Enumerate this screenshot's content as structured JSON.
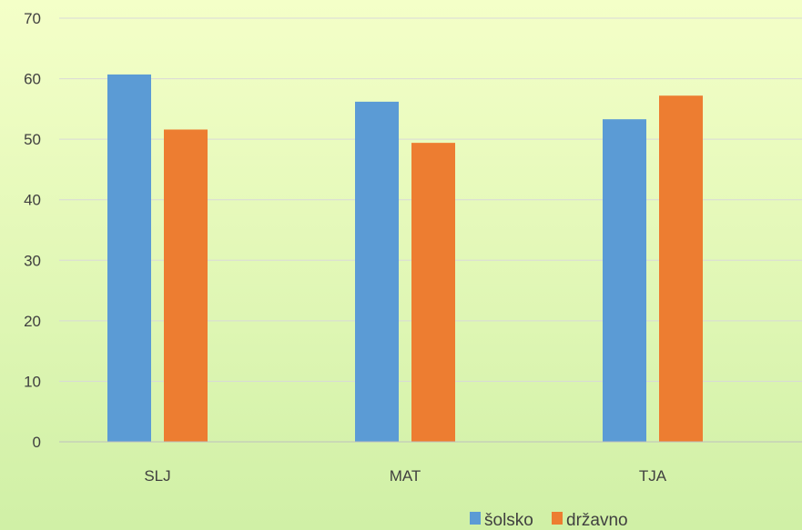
{
  "chart_data": {
    "type": "bar",
    "categories": [
      "SLJ",
      "MAT",
      "TJA"
    ],
    "series": [
      {
        "name": "šolsko",
        "values": [
          60.7,
          56.2,
          53.3
        ],
        "color": "#5B9BD5"
      },
      {
        "name": "državno",
        "values": [
          51.6,
          49.4,
          57.2
        ],
        "color": "#ED7D31"
      }
    ],
    "ylim": [
      0,
      70
    ],
    "yticks": [
      0,
      10,
      20,
      30,
      40,
      50,
      60,
      70
    ],
    "grid": true,
    "legend": "bottom-right",
    "background": [
      "#F4FFC8",
      "#D0F0A6"
    ]
  }
}
